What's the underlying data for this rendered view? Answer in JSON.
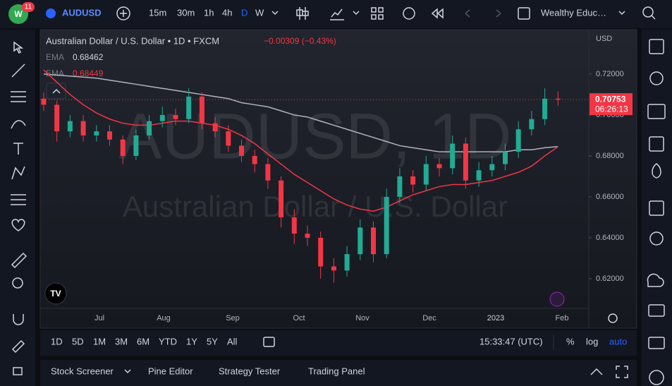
{
  "top_bar": {
    "notification_count": "11",
    "symbol": "AUDUSD",
    "intervals": [
      "15m",
      "30m",
      "1h",
      "4h",
      "D",
      "W"
    ],
    "active_interval": "D",
    "layout_name": "Wealthy Educ…"
  },
  "chart": {
    "legend": {
      "title": "Australian Dollar / U.S. Dollar • 1D • FXCM",
      "change": "−0.00309 (−0.43%)",
      "indicators": [
        {
          "name": "EMA",
          "value": "0.68462",
          "color": "#b2b5be",
          "values": [
            0.72,
            0.7195,
            0.719,
            0.7185,
            0.718,
            0.717,
            0.716,
            0.715,
            0.714,
            0.713,
            0.712,
            0.711,
            0.71,
            0.709,
            0.708,
            0.706,
            0.705,
            0.704,
            0.702,
            0.7,
            0.699,
            0.697,
            0.695,
            0.693,
            0.691,
            0.689,
            0.687,
            0.685,
            0.684,
            0.683,
            0.682,
            0.682,
            0.682,
            0.682,
            0.682,
            0.682,
            0.683,
            0.683,
            0.684,
            0.6846
          ]
        },
        {
          "name": "EMA",
          "value": "0.68449",
          "color": "#f23645",
          "values": [
            0.722,
            0.716,
            0.71,
            0.705,
            0.701,
            0.698,
            0.696,
            0.695,
            0.695,
            0.696,
            0.697,
            0.697,
            0.696,
            0.695,
            0.693,
            0.69,
            0.686,
            0.681,
            0.676,
            0.671,
            0.667,
            0.663,
            0.659,
            0.656,
            0.654,
            0.653,
            0.655,
            0.658,
            0.661,
            0.663,
            0.665,
            0.666,
            0.666,
            0.667,
            0.668,
            0.67,
            0.672,
            0.675,
            0.68,
            0.6845
          ]
        }
      ]
    },
    "watermark": {
      "symbol": "AUDUSD, 1D",
      "description": "Australian Dollar / U.S. Dollar"
    },
    "currency": "USD",
    "ylim": [
      0.6055,
      0.7417
    ],
    "yticks": [
      {
        "value": 0.72,
        "label": "0.72000"
      },
      {
        "value": 0.7,
        "label": "0.70000"
      },
      {
        "value": 0.68,
        "label": "0.68000"
      },
      {
        "value": 0.66,
        "label": "0.66000"
      },
      {
        "value": 0.64,
        "label": "0.64000"
      },
      {
        "value": 0.62,
        "label": "0.62000"
      }
    ],
    "x_labels": [
      "Jul",
      "Aug",
      "Sep",
      "Oct",
      "Nov",
      "Dec",
      "2023",
      "Feb"
    ],
    "up_color": "#22ab94",
    "down_color": "#f23645",
    "candles": [
      [
        0.708,
        0.711,
        0.702,
        0.705
      ],
      [
        0.705,
        0.707,
        0.687,
        0.692
      ],
      [
        0.692,
        0.7,
        0.689,
        0.697
      ],
      [
        0.697,
        0.7,
        0.687,
        0.69
      ],
      [
        0.69,
        0.695,
        0.687,
        0.692
      ],
      [
        0.692,
        0.695,
        0.685,
        0.688
      ],
      [
        0.688,
        0.69,
        0.676,
        0.68
      ],
      [
        0.68,
        0.693,
        0.678,
        0.69
      ],
      [
        0.69,
        0.7,
        0.688,
        0.697
      ],
      [
        0.697,
        0.704,
        0.694,
        0.7
      ],
      [
        0.7,
        0.703,
        0.695,
        0.698
      ],
      [
        0.698,
        0.713,
        0.696,
        0.709
      ],
      [
        0.709,
        0.711,
        0.693,
        0.696
      ],
      [
        0.696,
        0.699,
        0.689,
        0.692
      ],
      [
        0.692,
        0.695,
        0.682,
        0.685
      ],
      [
        0.685,
        0.688,
        0.677,
        0.68
      ],
      [
        0.68,
        0.683,
        0.672,
        0.676
      ],
      [
        0.676,
        0.679,
        0.664,
        0.668
      ],
      [
        0.668,
        0.67,
        0.645,
        0.65
      ],
      [
        0.65,
        0.654,
        0.637,
        0.642
      ],
      [
        0.642,
        0.646,
        0.636,
        0.64
      ],
      [
        0.64,
        0.643,
        0.62,
        0.626
      ],
      [
        0.626,
        0.63,
        0.618,
        0.624
      ],
      [
        0.624,
        0.636,
        0.621,
        0.632
      ],
      [
        0.632,
        0.649,
        0.629,
        0.645
      ],
      [
        0.645,
        0.648,
        0.628,
        0.632
      ],
      [
        0.632,
        0.664,
        0.63,
        0.66
      ],
      [
        0.66,
        0.674,
        0.657,
        0.67
      ],
      [
        0.67,
        0.673,
        0.662,
        0.666
      ],
      [
        0.666,
        0.68,
        0.663,
        0.676
      ],
      [
        0.676,
        0.679,
        0.67,
        0.674
      ],
      [
        0.674,
        0.69,
        0.671,
        0.686
      ],
      [
        0.686,
        0.689,
        0.664,
        0.668
      ],
      [
        0.668,
        0.677,
        0.665,
        0.673
      ],
      [
        0.673,
        0.68,
        0.67,
        0.676
      ],
      [
        0.676,
        0.686,
        0.673,
        0.682
      ],
      [
        0.682,
        0.697,
        0.679,
        0.693
      ],
      [
        0.693,
        0.702,
        0.69,
        0.698
      ],
      [
        0.698,
        0.713,
        0.695,
        0.708
      ],
      [
        0.708,
        0.7115,
        0.7045,
        0.70753
      ]
    ],
    "last_price": {
      "value": 0.70753,
      "label": "0.70753",
      "countdown": "06:26:13"
    }
  },
  "bottom_bar": {
    "ranges": [
      "1D",
      "5D",
      "1M",
      "3M",
      "6M",
      "YTD",
      "1Y",
      "5Y",
      "All"
    ],
    "time": "15:33:47 (UTC)",
    "options": [
      "%",
      "log",
      "auto"
    ]
  },
  "panel_tabs": [
    "Stock Screener",
    "Pine Editor",
    "Strategy Tester",
    "Trading Panel"
  ]
}
